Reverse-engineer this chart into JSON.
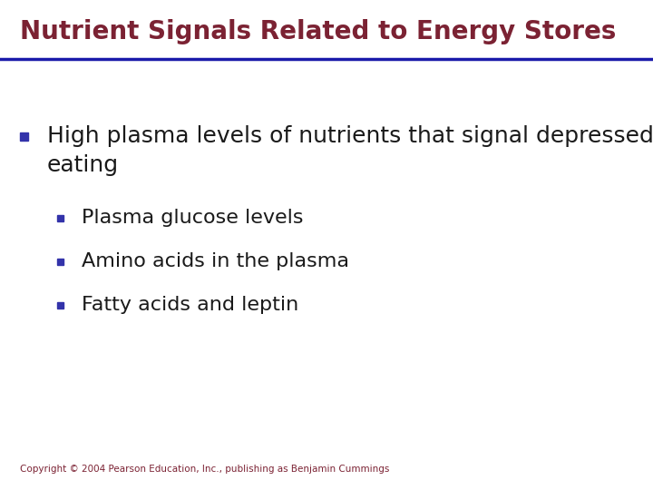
{
  "title": "Nutrient Signals Related to Energy Stores",
  "title_color": "#7B2233",
  "title_fontsize": 20,
  "title_bold": true,
  "underline_color": "#1a1aaa",
  "background_color": "#FFFFFF",
  "text_color": "#1a1a1a",
  "bullet_color": "#3333AA",
  "main_text_line1": "High plasma levels of nutrients that signal depressed",
  "main_text_line2": "eating",
  "main_fontsize": 18,
  "sub_fontsize": 16,
  "sub_items": [
    "Plasma glucose levels",
    "Amino acids in the plasma",
    "Fatty acids and leptin"
  ],
  "copyright": "Copyright © 2004 Pearson Education, Inc., publishing as Benjamin Cummings",
  "copyright_fontsize": 7.5,
  "copyright_color": "#7B2233"
}
